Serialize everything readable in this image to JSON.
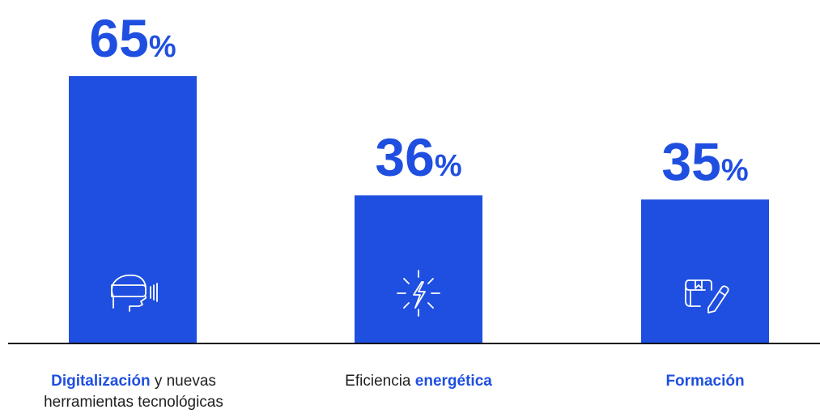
{
  "chart_data": {
    "type": "bar",
    "categories": [
      "Digitalización y nuevas herramientas tecnológicas",
      "Eficiencia energética",
      "Formación"
    ],
    "values": [
      65,
      36,
      35
    ],
    "value_suffix": "%",
    "title": "",
    "xlabel": "",
    "ylabel": "",
    "ylim": [
      0,
      100
    ],
    "grid": false,
    "legend": "none"
  },
  "labels": [
    {
      "bold": "Digitalización",
      "rest1": " y nuevas",
      "rest2": "herramientas tecnológicas"
    },
    {
      "plain": "Eficiencia ",
      "bold": "energética"
    },
    {
      "bold": "Formación"
    }
  ],
  "icons": [
    "vr-headset-icon",
    "energy-spark-icon",
    "book-pencil-icon"
  ],
  "colors": {
    "bar": "#1f4fe0",
    "text": "#1f4fe0",
    "icon": "#ffffff",
    "axis": "#111111",
    "label": "#1f1f1f"
  }
}
